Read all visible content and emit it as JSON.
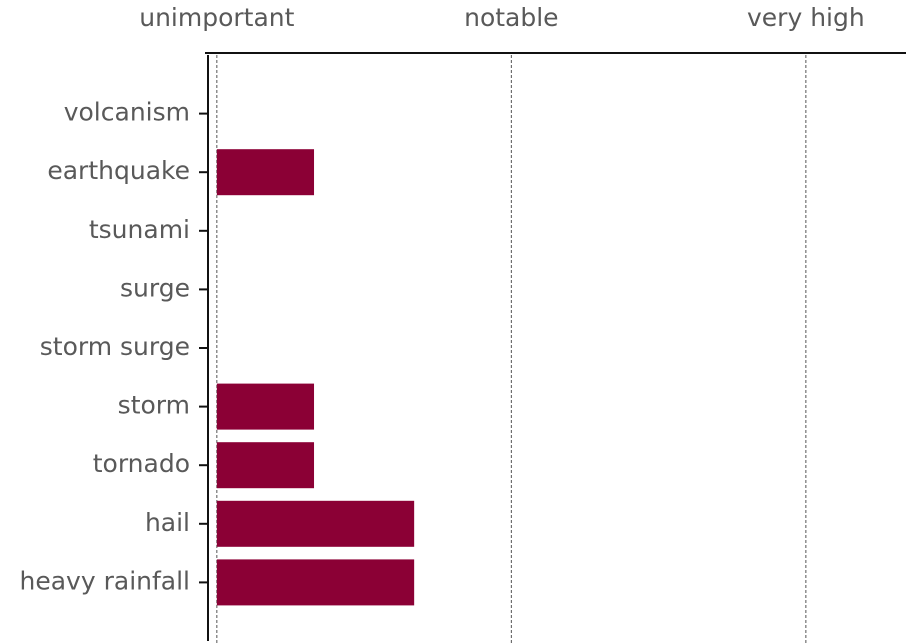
{
  "chart_data": {
    "type": "bar",
    "orientation": "horizontal",
    "categories": [
      "volcanism",
      "earthquake",
      "tsunami",
      "surge",
      "storm surge",
      "storm",
      "tornado",
      "hail",
      "heavy rainfall"
    ],
    "values": [
      0,
      0.33,
      0,
      0,
      0,
      0.33,
      0.33,
      0.67,
      0.67
    ],
    "color": "#8b0035",
    "xlim": [
      -0.03,
      2.34
    ],
    "xticks": [
      {
        "value": 0,
        "label": "unimportant"
      },
      {
        "value": 1,
        "label": "notable"
      },
      {
        "value": 2,
        "label": "very high"
      }
    ],
    "grid": true
  }
}
